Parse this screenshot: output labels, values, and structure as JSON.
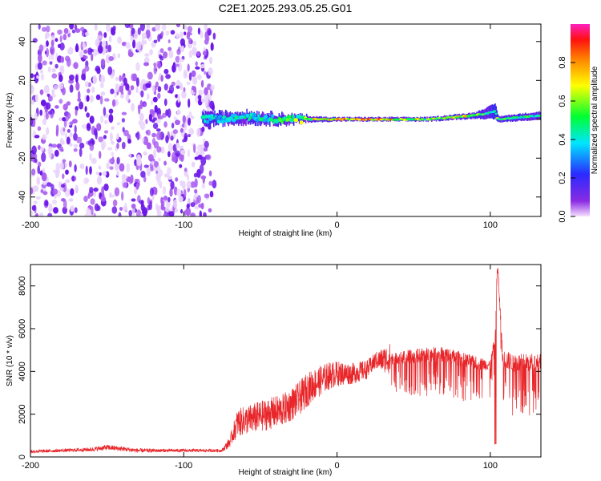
{
  "title": "C2E1.2025.293.05.25.G01",
  "chart_data": [
    {
      "type": "heatmap",
      "xlabel": "Height of straight line (km)",
      "ylabel": "Frequency (Hz)",
      "xlim": [
        -200,
        133
      ],
      "ylim": [
        -50,
        49
      ],
      "xticks": [
        -200,
        -100,
        0,
        100
      ],
      "yticks": [
        -40,
        -20,
        0,
        20,
        40
      ],
      "x_tick_labels": [
        "-200",
        "-100",
        "0",
        "100"
      ],
      "y_tick_labels": [
        "-40",
        "-20",
        "0",
        "20",
        "40"
      ],
      "colorbar": {
        "label": "Normalized spectral amplitude",
        "range": [
          0,
          1
        ],
        "ticks": [
          0.0,
          0.2,
          0.4,
          0.6,
          0.8
        ],
        "tick_labels": [
          "0.0",
          "0.2",
          "0.4",
          "0.6",
          "0.8"
        ],
        "colormap": "rainbow (purple-blue-cyan-green-yellow-orange-red-magenta)"
      },
      "noise_region": {
        "x_range": [
          -200,
          -80
        ],
        "freq_range": [
          -50,
          49
        ],
        "amplitude_range": [
          0.0,
          0.1
        ]
      },
      "signal_track": [
        {
          "x": -88,
          "freq": 0,
          "band_hz": 6,
          "peak_amplitude": 0.45
        },
        {
          "x": -60,
          "freq": 1,
          "band_hz": 6,
          "peak_amplitude": 0.5
        },
        {
          "x": -35,
          "freq": 0,
          "band_hz": 5,
          "peak_amplitude": 0.6
        },
        {
          "x": -20,
          "freq": 0,
          "band_hz": 3,
          "peak_amplitude": 0.75
        },
        {
          "x": 0,
          "freq": 0,
          "band_hz": 2,
          "peak_amplitude": 0.9
        },
        {
          "x": 30,
          "freq": 0,
          "band_hz": 2,
          "peak_amplitude": 0.95
        },
        {
          "x": 60,
          "freq": 0,
          "band_hz": 2,
          "peak_amplitude": 0.7
        },
        {
          "x": 90,
          "freq": 2,
          "band_hz": 3,
          "peak_amplitude": 0.85
        },
        {
          "x": 103,
          "freq": 4,
          "band_hz": 8,
          "peak_amplitude": 0.5
        },
        {
          "x": 105,
          "freq": 0,
          "band_hz": 3,
          "peak_amplitude": 0.7
        },
        {
          "x": 133,
          "freq": 2,
          "band_hz": 4,
          "peak_amplitude": 0.55
        }
      ]
    },
    {
      "type": "line",
      "xlabel": "Height of straight line (km)",
      "ylabel": "SNR (10 * v/v)",
      "xlim": [
        -200,
        133
      ],
      "ylim": [
        0,
        9000
      ],
      "xticks": [
        -200,
        -100,
        0,
        100
      ],
      "yticks": [
        0,
        2000,
        4000,
        6000,
        8000
      ],
      "x_tick_labels": [
        "-200",
        "-100",
        "0",
        "100"
      ],
      "y_tick_labels": [
        "0",
        "2000",
        "4000",
        "6000",
        "8000"
      ],
      "series": [
        {
          "name": "SNR",
          "color": "#e8262a",
          "x": [
            -200,
            -180,
            -160,
            -150,
            -130,
            -110,
            -90,
            -75,
            -70,
            -65,
            -55,
            -45,
            -35,
            -25,
            -20,
            -15,
            -10,
            -5,
            0,
            10,
            20,
            25,
            35,
            50,
            60,
            70,
            80,
            90,
            100,
            103,
            105,
            108,
            115,
            125,
            133
          ],
          "y": [
            250,
            300,
            350,
            450,
            300,
            300,
            300,
            300,
            700,
            1600,
            1800,
            2000,
            2200,
            2700,
            3100,
            3400,
            3600,
            3800,
            3900,
            3900,
            4100,
            4500,
            4600,
            4700,
            4800,
            4800,
            4600,
            4400,
            4300,
            5500,
            8800,
            4600,
            4400,
            4400,
            4500
          ],
          "spread": [
            150,
            150,
            200,
            250,
            200,
            150,
            150,
            150,
            500,
            1300,
            1400,
            1500,
            1500,
            1600,
            1600,
            1500,
            1400,
            1300,
            1200,
            1000,
            900,
            800,
            1500,
            2000,
            2000,
            2000,
            2000,
            1800,
            1500,
            1500,
            1200,
            2500,
            2500,
            2500,
            2500
          ]
        }
      ]
    }
  ]
}
